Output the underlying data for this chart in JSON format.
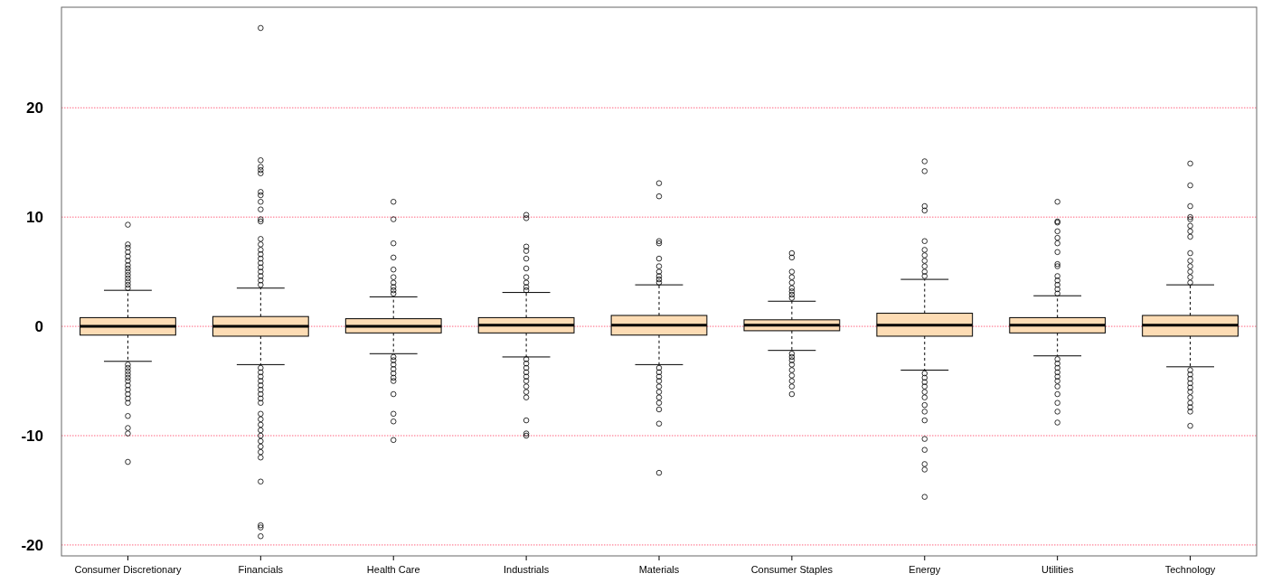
{
  "chart_data": {
    "type": "box",
    "categories": [
      "Consumer Discretionary",
      "Financials",
      "Health Care",
      "Industrials",
      "Materials",
      "Consumer Staples",
      "Energy",
      "Utilities",
      "Technology"
    ],
    "color": "#fddcb4",
    "boxes": [
      {
        "low": -3.2,
        "q1": -0.8,
        "median": 0,
        "q3": 0.8,
        "high": 3.3,
        "outliers": [
          3.5,
          3.8,
          4.1,
          4.4,
          4.7,
          5,
          5.3,
          5.6,
          6,
          6.4,
          6.8,
          7.2,
          7.5,
          9.3,
          -3.5,
          -3.8,
          -4.1,
          -4.4,
          -4.7,
          -5,
          -5.4,
          -5.8,
          -6.2,
          -6.6,
          -7,
          -8.2,
          -9.3,
          -9.8,
          -12.4
        ]
      },
      {
        "low": -3.5,
        "q1": -0.9,
        "median": 0,
        "q3": 0.9,
        "high": 3.5,
        "outliers": [
          3.8,
          4.2,
          4.6,
          5,
          5.4,
          5.8,
          6.2,
          6.6,
          7,
          7.5,
          8,
          9.6,
          9.8,
          10.7,
          11.4,
          12,
          12.3,
          14,
          14.3,
          14.6,
          15.2,
          27.3,
          -3.8,
          -4.2,
          -4.6,
          -5,
          -5.4,
          -5.8,
          -6.2,
          -6.6,
          -7,
          -8,
          -8.5,
          -9,
          -9.5,
          -10,
          -10.5,
          -11,
          -11.5,
          -12,
          -14.2,
          -18.2,
          -18.4,
          -19.2
        ]
      },
      {
        "low": -2.5,
        "q1": -0.6,
        "median": 0,
        "q3": 0.7,
        "high": 2.7,
        "outliers": [
          3,
          3.3,
          3.6,
          4,
          4.5,
          5.2,
          6.3,
          7.6,
          9.8,
          11.4,
          -2.8,
          -3.1,
          -3.5,
          -3.9,
          -4.3,
          -4.7,
          -5,
          -6.2,
          -8,
          -8.7,
          -10.4
        ]
      },
      {
        "low": -2.8,
        "q1": -0.6,
        "median": 0.1,
        "q3": 0.8,
        "high": 3.1,
        "outliers": [
          3.3,
          3.6,
          4,
          4.5,
          5.3,
          6.2,
          6.9,
          7.3,
          9.9,
          10.2,
          -3,
          -3.4,
          -3.8,
          -4.2,
          -4.6,
          -5,
          -5.5,
          -6,
          -6.5,
          -8.6,
          -9.8,
          -10
        ]
      },
      {
        "low": -3.5,
        "q1": -0.8,
        "median": 0.1,
        "q3": 1,
        "high": 3.8,
        "outliers": [
          4,
          4.3,
          4.6,
          5,
          5.5,
          6.2,
          7.6,
          7.8,
          11.9,
          13.1,
          -3.8,
          -4.2,
          -4.6,
          -5,
          -5.5,
          -6,
          -6.5,
          -7,
          -7.6,
          -8.9,
          -13.4
        ]
      },
      {
        "low": -2.2,
        "q1": -0.4,
        "median": 0.1,
        "q3": 0.6,
        "high": 2.3,
        "outliers": [
          2.6,
          2.9,
          3.2,
          3.5,
          4,
          4.5,
          5,
          6.3,
          6.7,
          -2.5,
          -2.8,
          -3.1,
          -3.5,
          -4,
          -4.5,
          -5,
          -5.5,
          -6.2
        ]
      },
      {
        "low": -4,
        "q1": -0.9,
        "median": 0.1,
        "q3": 1.2,
        "high": 4.3,
        "outliers": [
          4.6,
          5,
          5.5,
          6,
          6.5,
          7,
          7.8,
          10.6,
          11,
          14.2,
          15.1,
          -4.3,
          -4.7,
          -5.1,
          -5.5,
          -6,
          -6.5,
          -7.2,
          -7.8,
          -8.6,
          -10.3,
          -11.3,
          -12.6,
          -13.1,
          -15.6
        ]
      },
      {
        "low": -2.7,
        "q1": -0.6,
        "median": 0.1,
        "q3": 0.8,
        "high": 2.8,
        "outliers": [
          3,
          3.4,
          3.8,
          4.2,
          4.6,
          5.5,
          5.7,
          6.8,
          7.6,
          8.1,
          8.7,
          9.5,
          9.6,
          11.4,
          -3,
          -3.4,
          -3.8,
          -4.2,
          -4.6,
          -5,
          -5.5,
          -6.2,
          -7,
          -7.8,
          -8.8
        ]
      },
      {
        "low": -3.7,
        "q1": -0.9,
        "median": 0.1,
        "q3": 1,
        "high": 3.8,
        "outliers": [
          4,
          4.5,
          5,
          5.5,
          6,
          6.7,
          8.2,
          8.7,
          9.2,
          9.8,
          10,
          11,
          12.9,
          14.9,
          -4,
          -4.4,
          -4.8,
          -5.2,
          -5.6,
          -6,
          -6.5,
          -7,
          -7.4,
          -7.8,
          -9.1
        ]
      }
    ],
    "ylim": [
      -21,
      29.2
    ],
    "yticks": [
      -20,
      -10,
      0,
      10,
      20
    ],
    "grid": "y"
  }
}
